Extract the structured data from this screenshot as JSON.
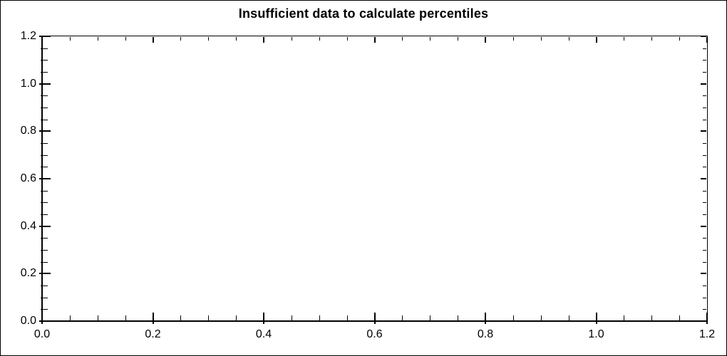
{
  "window": {
    "background_color": "#ffffff",
    "border_color": "#000000"
  },
  "chart_data": {
    "type": "line",
    "title": "Insufficient data to calculate percentiles",
    "series": [],
    "xlabel": "",
    "ylabel": "",
    "xlim": [
      0,
      1.2
    ],
    "ylim": [
      0,
      1.2
    ],
    "x_tick_labels": [
      "0.0",
      "0.2",
      "0.4",
      "0.6",
      "0.8",
      "1.0",
      "1.2"
    ],
    "y_tick_labels": [
      "0.0",
      "0.2",
      "0.4",
      "0.6",
      "0.8",
      "1.0",
      "1.2"
    ],
    "x_major_step": 0.2,
    "y_major_step": 0.2,
    "x_minor_step": 0.05,
    "y_minor_step": 0.05,
    "tick_style": "cross-on-left-bottom-inward-on-top-right",
    "grid": false,
    "axis_color": "#000000",
    "text_color": "#000000",
    "plot_background": "#ffffff"
  }
}
